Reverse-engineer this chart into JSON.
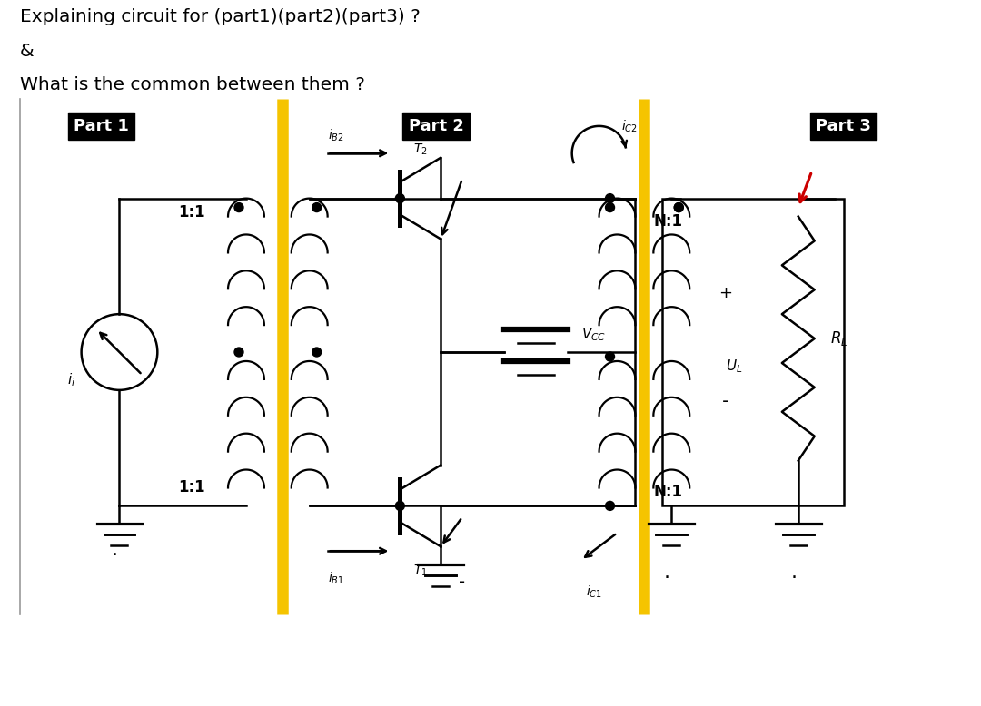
{
  "title_line1": "Explaining circuit for (part1)(part2)(part3) ?",
  "title_line2": "&",
  "title_line3": "What is the common between them ?",
  "part1_label": "Part 1",
  "part2_label": "Part 2",
  "part3_label": "Part 3",
  "background_color": "#ffffff",
  "text_color": "#000000",
  "yellow_line_color": "#F5C400",
  "label_bg_color": "#000000",
  "label_text_color": "#ffffff",
  "lw": 1.8,
  "coil_lw": 1.6
}
